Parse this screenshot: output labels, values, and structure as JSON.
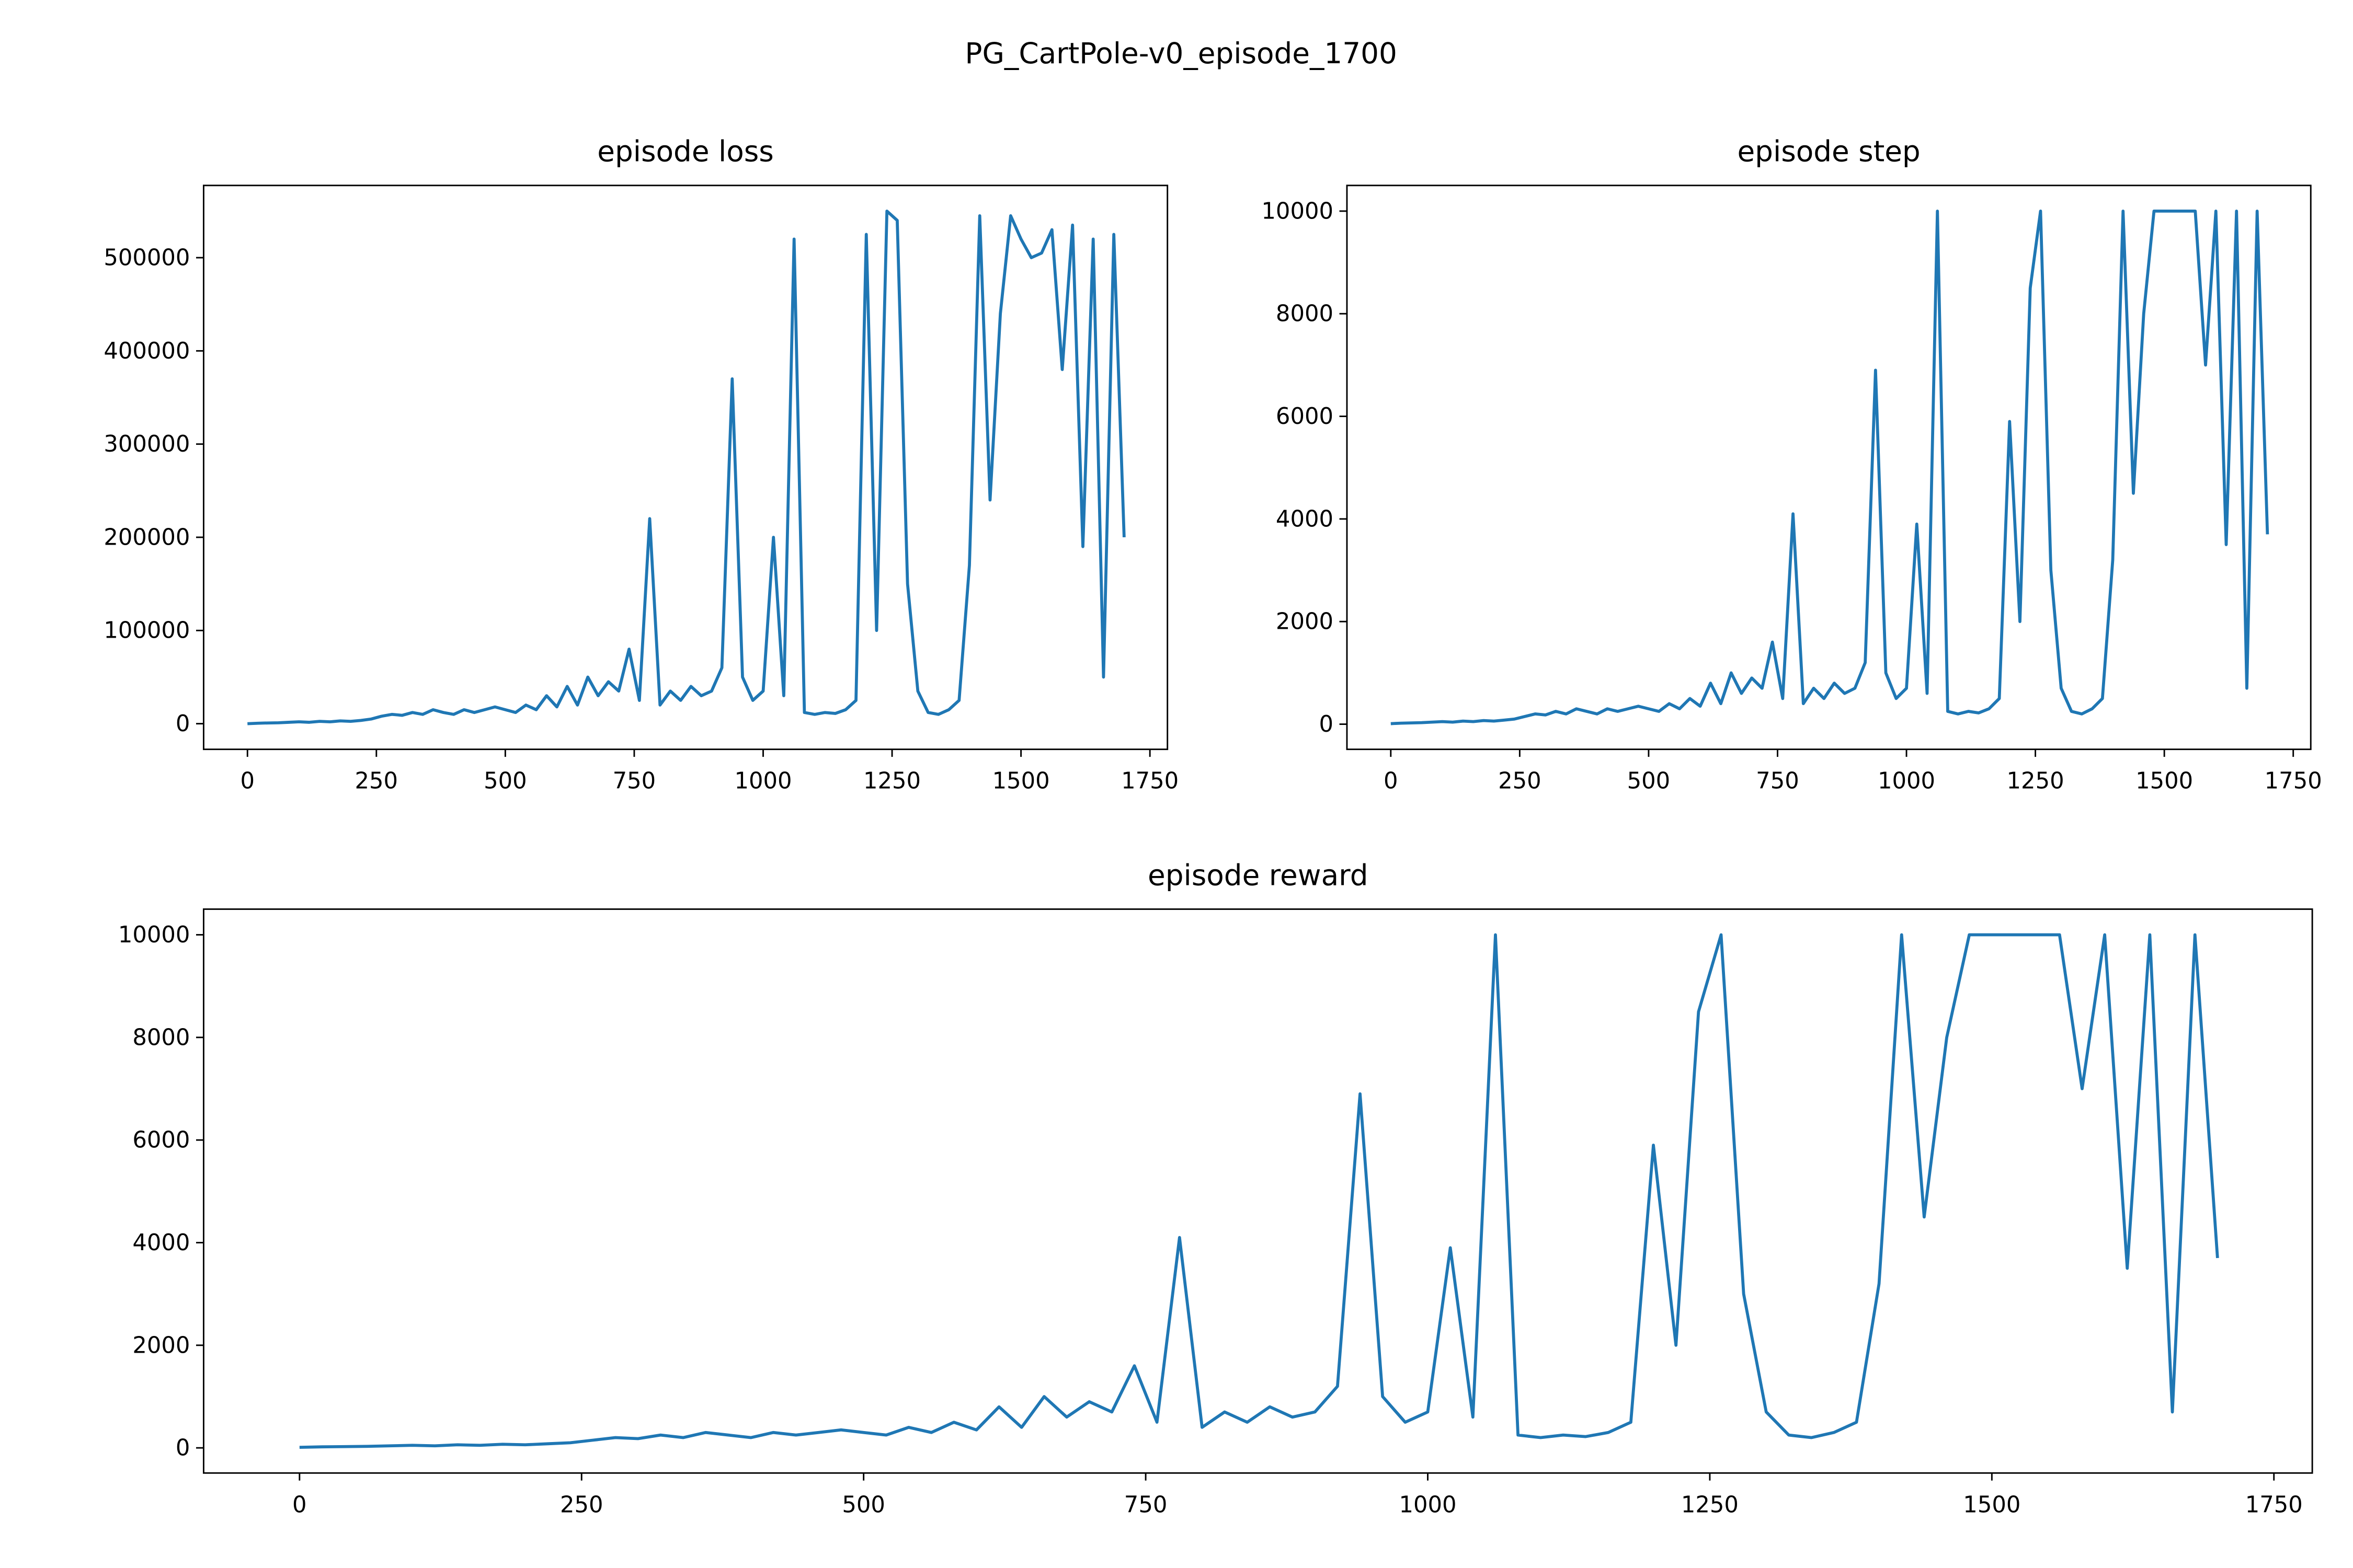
{
  "title": "PG_CartPole-v0_episode_1700",
  "chart_data": [
    {
      "type": "line",
      "title": "episode loss",
      "x": [
        0,
        20,
        40,
        60,
        80,
        100,
        120,
        140,
        160,
        180,
        200,
        220,
        240,
        260,
        280,
        300,
        320,
        340,
        360,
        380,
        400,
        420,
        440,
        460,
        480,
        500,
        520,
        540,
        560,
        580,
        600,
        620,
        640,
        660,
        680,
        700,
        720,
        740,
        760,
        780,
        800,
        820,
        840,
        860,
        880,
        900,
        920,
        940,
        960,
        980,
        1000,
        1020,
        1040,
        1060,
        1080,
        1100,
        1120,
        1140,
        1160,
        1180,
        1200,
        1220,
        1240,
        1260,
        1280,
        1300,
        1320,
        1340,
        1360,
        1380,
        1400,
        1420,
        1440,
        1460,
        1480,
        1500,
        1520,
        1540,
        1560,
        1580,
        1600,
        1620,
        1640,
        1660,
        1680,
        1700
      ],
      "series": [
        {
          "color": "#1f77b4",
          "values": [
            0,
            500,
            800,
            1000,
            1500,
            2000,
            1500,
            2500,
            2000,
            3000,
            2500,
            3500,
            5000,
            8000,
            10000,
            9000,
            12000,
            10000,
            15000,
            12000,
            10000,
            15000,
            12000,
            15000,
            18000,
            15000,
            12000,
            20000,
            15000,
            30000,
            18000,
            40000,
            20000,
            50000,
            30000,
            45000,
            35000,
            80000,
            25000,
            220000,
            20000,
            35000,
            25000,
            40000,
            30000,
            35000,
            60000,
            370000,
            50000,
            25000,
            35000,
            200000,
            30000,
            520000,
            12000,
            10000,
            12000,
            11000,
            15000,
            25000,
            525000,
            100000,
            550000,
            540000,
            150000,
            35000,
            12000,
            10000,
            15000,
            25000,
            170000,
            545000,
            240000,
            440000,
            545000,
            520000,
            500000,
            505000,
            530000,
            380000,
            535000,
            190000,
            520000,
            50000,
            525000,
            200000
          ]
        }
      ],
      "xlim": [
        -85,
        1784
      ],
      "xticks": [
        0,
        250,
        500,
        750,
        1000,
        1250,
        1500,
        1750
      ],
      "ylim": [
        -27500,
        577500
      ],
      "yticks": [
        0,
        100000,
        200000,
        300000,
        400000,
        500000
      ]
    },
    {
      "type": "line",
      "title": "episode step",
      "x": [
        0,
        20,
        40,
        60,
        80,
        100,
        120,
        140,
        160,
        180,
        200,
        220,
        240,
        260,
        280,
        300,
        320,
        340,
        360,
        380,
        400,
        420,
        440,
        460,
        480,
        500,
        520,
        540,
        560,
        580,
        600,
        620,
        640,
        660,
        680,
        700,
        720,
        740,
        760,
        780,
        800,
        820,
        840,
        860,
        880,
        900,
        920,
        940,
        960,
        980,
        1000,
        1020,
        1040,
        1060,
        1080,
        1100,
        1120,
        1140,
        1160,
        1180,
        1200,
        1220,
        1240,
        1260,
        1280,
        1300,
        1320,
        1340,
        1360,
        1380,
        1400,
        1420,
        1440,
        1460,
        1480,
        1500,
        1520,
        1540,
        1560,
        1580,
        1600,
        1620,
        1640,
        1660,
        1680,
        1700
      ],
      "series": [
        {
          "color": "#1f77b4",
          "values": [
            10,
            20,
            25,
            30,
            40,
            50,
            40,
            60,
            50,
            70,
            60,
            80,
            100,
            150,
            200,
            180,
            250,
            200,
            300,
            250,
            200,
            300,
            250,
            300,
            350,
            300,
            250,
            400,
            300,
            500,
            350,
            800,
            400,
            1000,
            600,
            900,
            700,
            1600,
            500,
            4100,
            400,
            700,
            500,
            800,
            600,
            700,
            1200,
            6900,
            1000,
            500,
            700,
            3900,
            600,
            10000,
            250,
            200,
            250,
            220,
            300,
            500,
            5900,
            2000,
            8500,
            10000,
            3000,
            700,
            250,
            200,
            300,
            500,
            3200,
            10000,
            4500,
            8000,
            10000,
            10000,
            10000,
            10000,
            10000,
            7000,
            10000,
            3500,
            10000,
            700,
            10000,
            3700
          ]
        }
      ],
      "xlim": [
        -85,
        1784
      ],
      "xticks": [
        0,
        250,
        500,
        750,
        1000,
        1250,
        1500,
        1750
      ],
      "ylim": [
        -490,
        10500
      ],
      "yticks": [
        0,
        2000,
        4000,
        6000,
        8000,
        10000
      ]
    },
    {
      "type": "line",
      "title": "episode reward",
      "x": [
        0,
        20,
        40,
        60,
        80,
        100,
        120,
        140,
        160,
        180,
        200,
        220,
        240,
        260,
        280,
        300,
        320,
        340,
        360,
        380,
        400,
        420,
        440,
        460,
        480,
        500,
        520,
        540,
        560,
        580,
        600,
        620,
        640,
        660,
        680,
        700,
        720,
        740,
        760,
        780,
        800,
        820,
        840,
        860,
        880,
        900,
        920,
        940,
        960,
        980,
        1000,
        1020,
        1040,
        1060,
        1080,
        1100,
        1120,
        1140,
        1160,
        1180,
        1200,
        1220,
        1240,
        1260,
        1280,
        1300,
        1320,
        1340,
        1360,
        1380,
        1400,
        1420,
        1440,
        1460,
        1480,
        1500,
        1520,
        1540,
        1560,
        1580,
        1600,
        1620,
        1640,
        1660,
        1680,
        1700
      ],
      "series": [
        {
          "color": "#1f77b4",
          "values": [
            10,
            20,
            25,
            30,
            40,
            50,
            40,
            60,
            50,
            70,
            60,
            80,
            100,
            150,
            200,
            180,
            250,
            200,
            300,
            250,
            200,
            300,
            250,
            300,
            350,
            300,
            250,
            400,
            300,
            500,
            350,
            800,
            400,
            1000,
            600,
            900,
            700,
            1600,
            500,
            4100,
            400,
            700,
            500,
            800,
            600,
            700,
            1200,
            6900,
            1000,
            500,
            700,
            3900,
            600,
            10000,
            250,
            200,
            250,
            220,
            300,
            500,
            5900,
            2000,
            8500,
            10000,
            3000,
            700,
            250,
            200,
            300,
            500,
            3200,
            10000,
            4500,
            8000,
            10000,
            10000,
            10000,
            10000,
            10000,
            7000,
            10000,
            3500,
            10000,
            700,
            10000,
            3700
          ]
        }
      ],
      "xlim": [
        -85,
        1784
      ],
      "xticks": [
        0,
        250,
        500,
        750,
        1000,
        1250,
        1500,
        1750
      ],
      "ylim": [
        -490,
        10500
      ],
      "yticks": [
        0,
        2000,
        4000,
        6000,
        8000,
        10000
      ]
    }
  ]
}
